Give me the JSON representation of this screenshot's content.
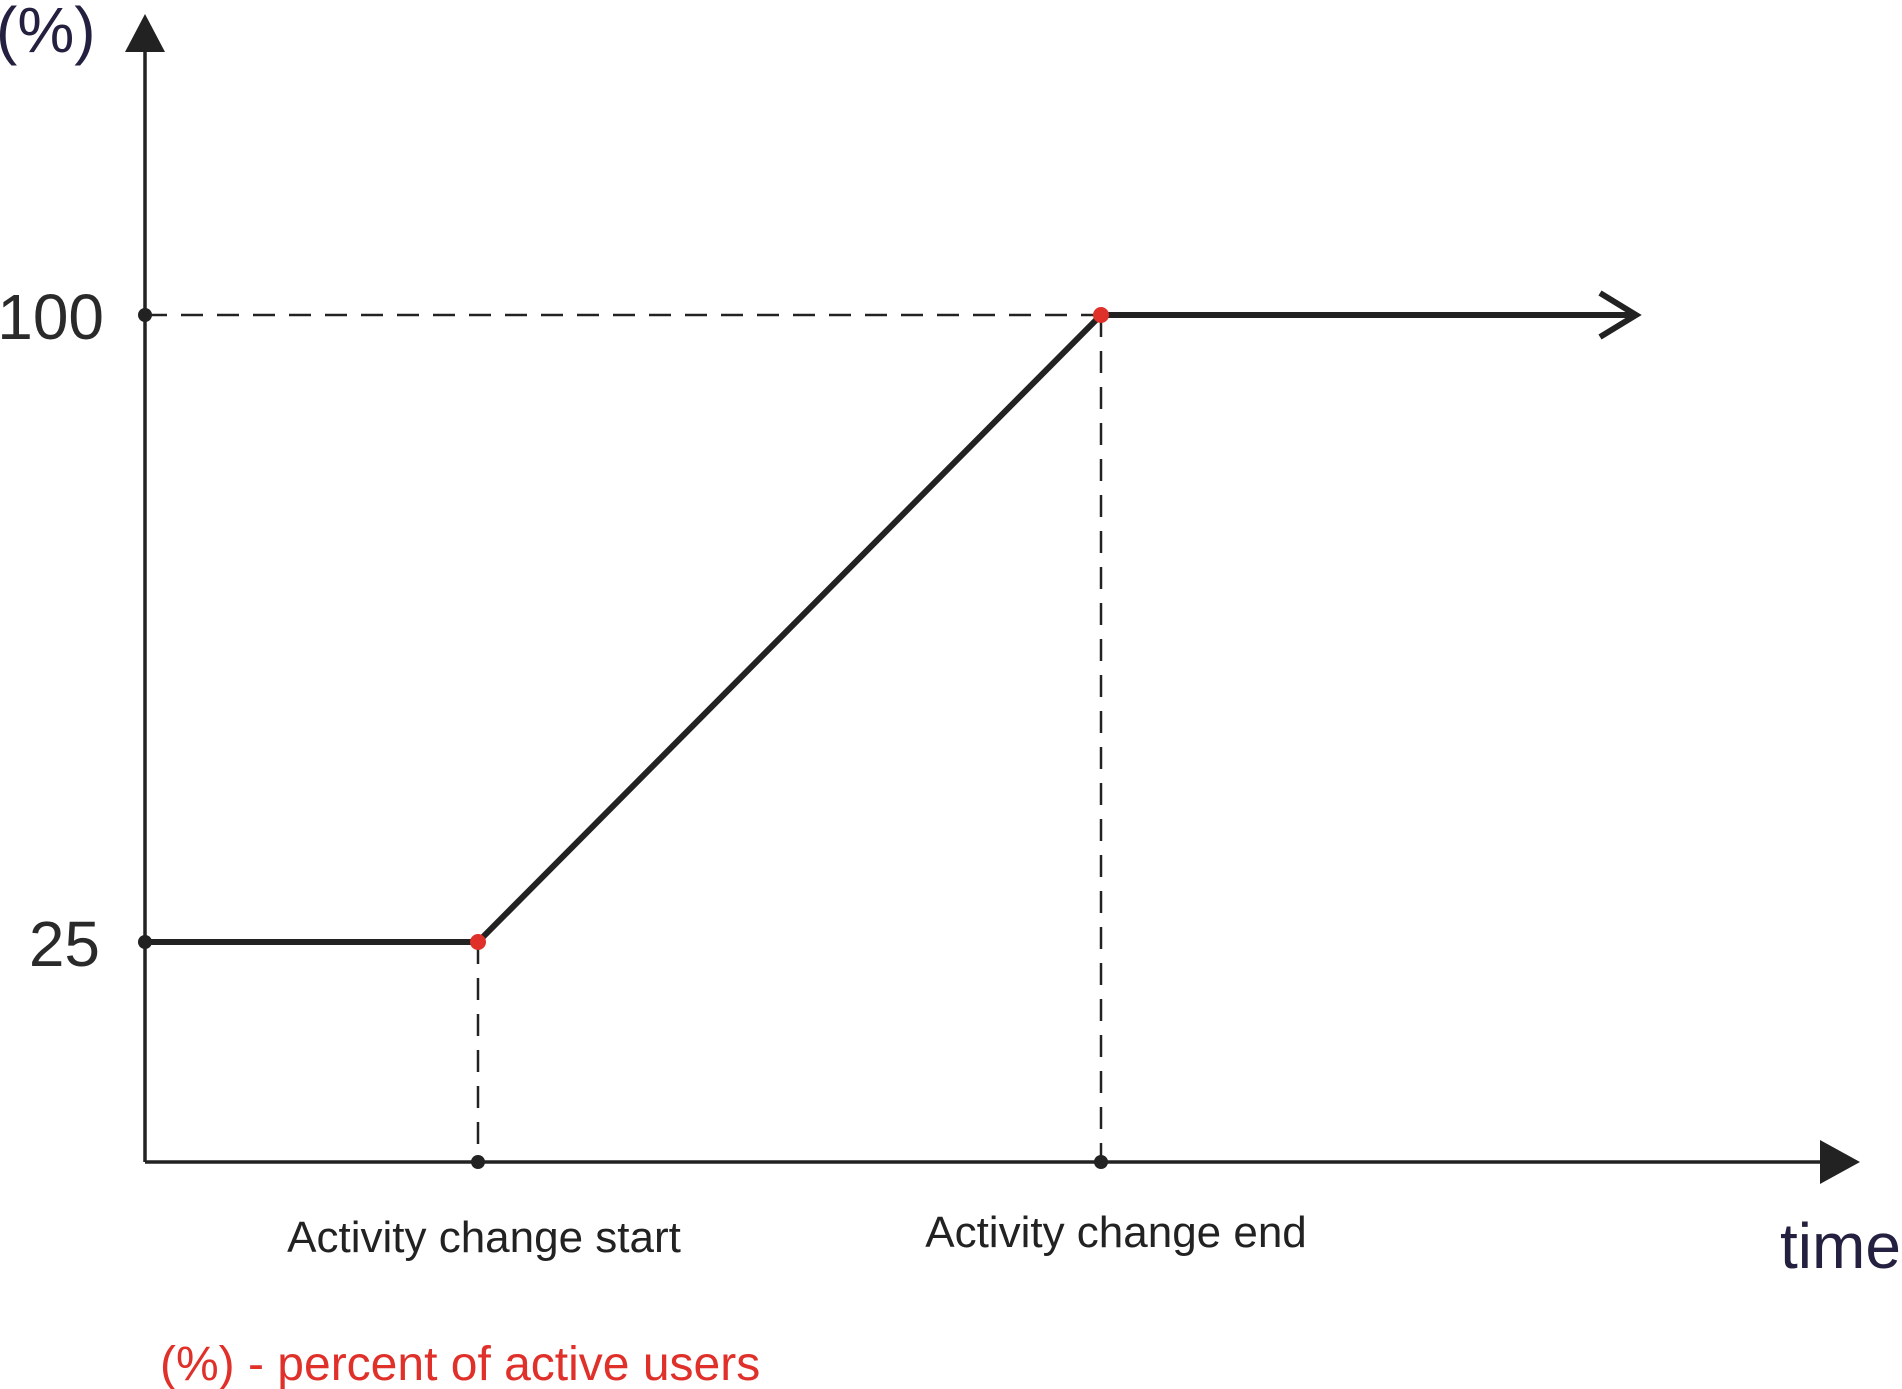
{
  "chart_data": {
    "type": "line",
    "ylabel": "(%)",
    "xlabel": "time",
    "yticks": [
      {
        "value": 25,
        "label": "25"
      },
      {
        "value": 100,
        "label": "100"
      }
    ],
    "ylim": [
      0,
      125
    ],
    "xlim": [
      0,
      10
    ],
    "series": [
      {
        "points": [
          {
            "x": 0,
            "y": 25
          },
          {
            "x": 2,
            "y": 25
          },
          {
            "x": 5.75,
            "y": 100
          },
          {
            "x": 9,
            "y": 100
          }
        ]
      }
    ],
    "markers": [
      {
        "x": 2,
        "y": 25,
        "label": "Activity change start"
      },
      {
        "x": 5.75,
        "y": 100,
        "label": "Activity change end"
      }
    ],
    "annotation": "(%) - percent of active users",
    "grid": false,
    "colors": {
      "line": "#222222",
      "marker": "#e0302a",
      "axis_title": "#23213f",
      "note": "#e0302a"
    }
  }
}
